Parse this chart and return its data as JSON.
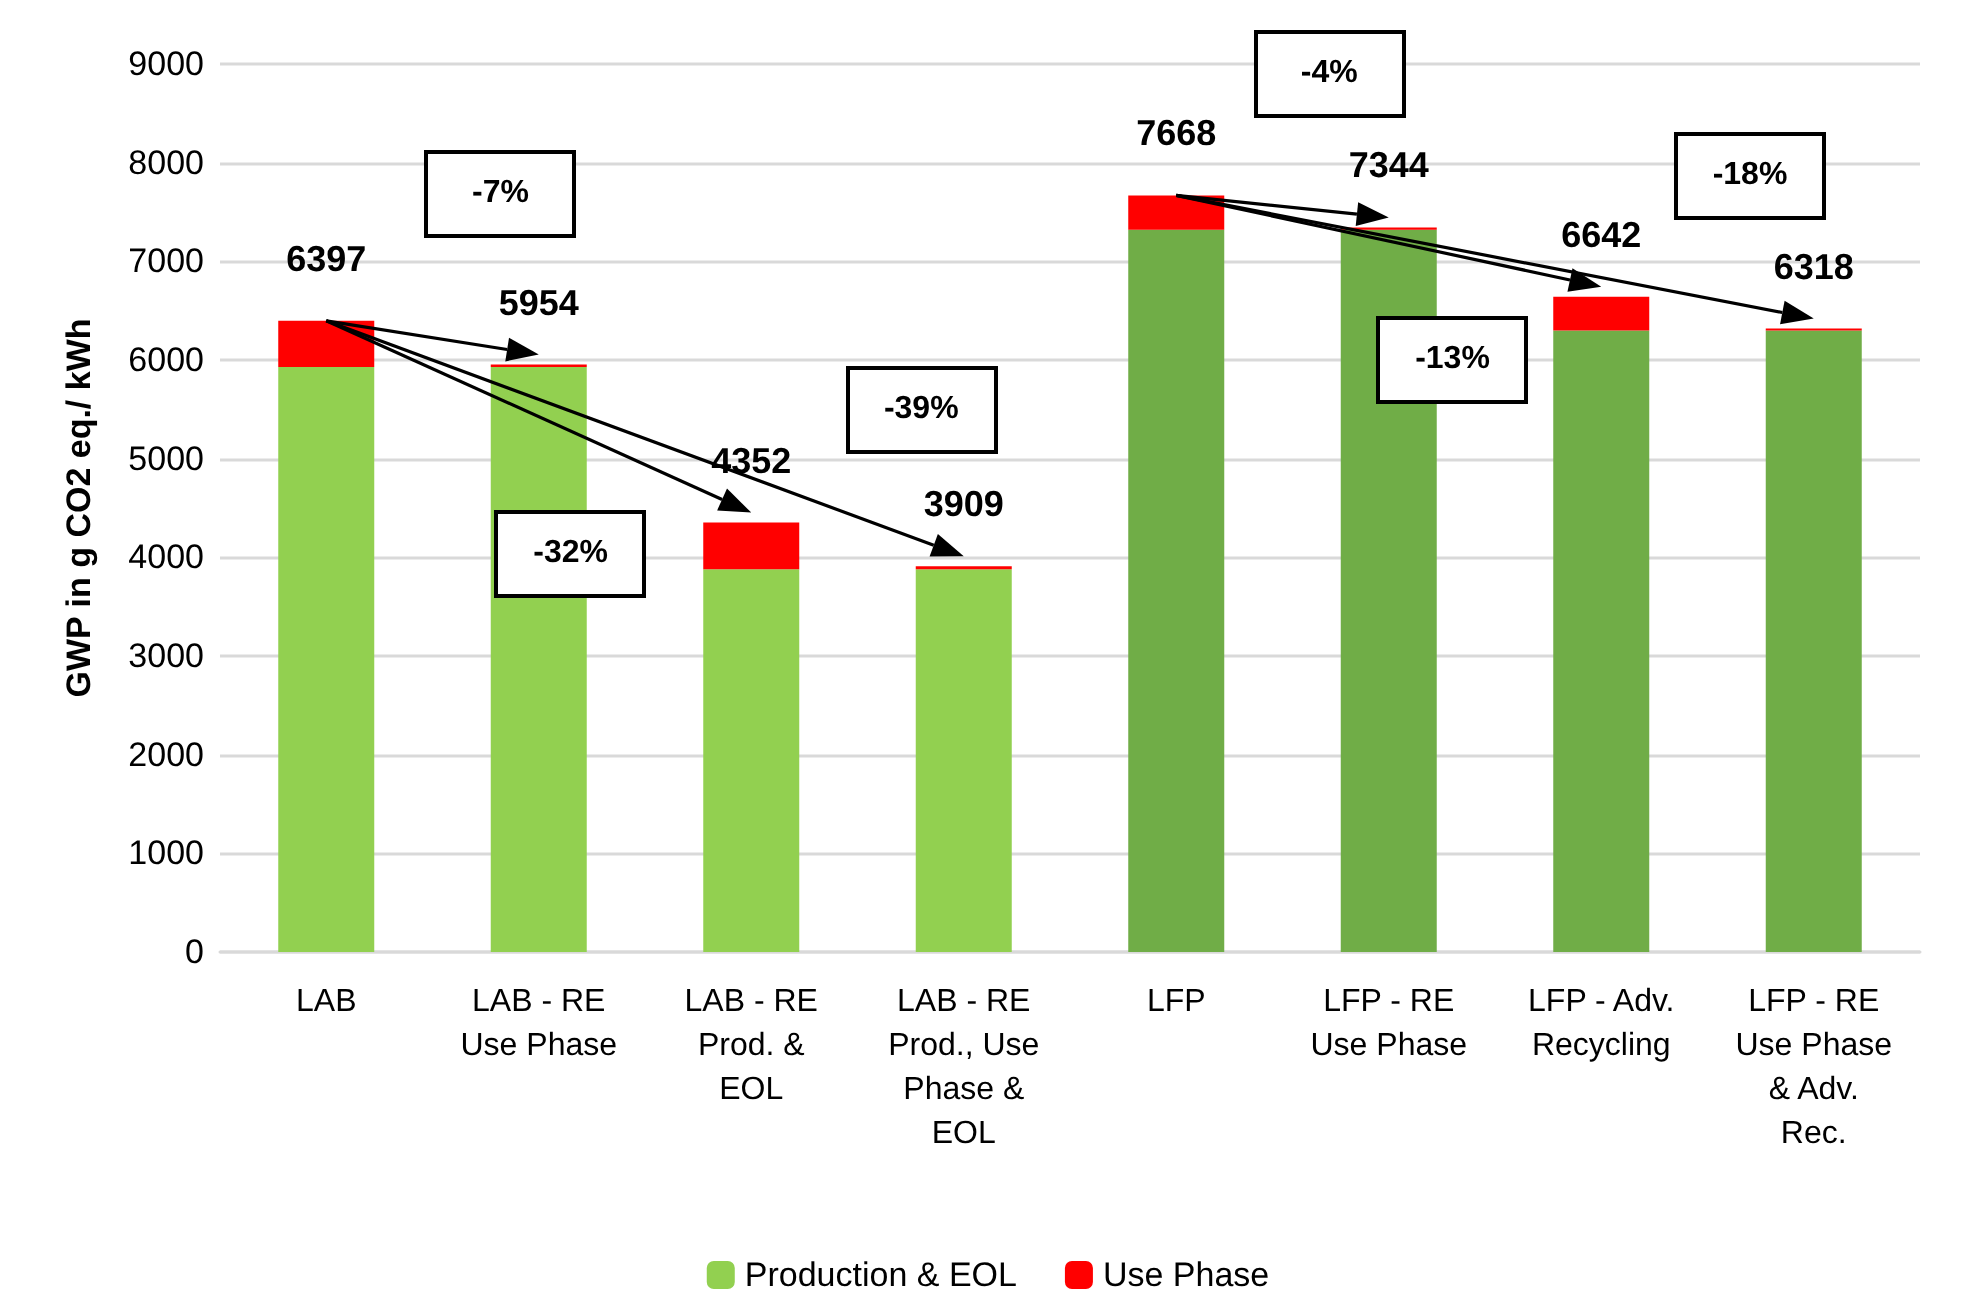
{
  "chart_data": {
    "type": "bar",
    "stacked": true,
    "ylabel": "GWP in g CO2 eq./ kWh",
    "categories": [
      "LAB",
      "LAB - RE\nUse Phase",
      "LAB - RE\nProd. &\nEOL",
      "LAB - RE\nProd., Use\nPhase &\nEOL",
      "LFP",
      "LFP - RE\nUse Phase",
      "LFP - Adv.\nRecycling",
      "LFP - RE\nUse Phase\n& Adv.\nRec."
    ],
    "series": [
      {
        "name": "Production & EOL",
        "color": "#92d050",
        "colors": [
          "#92d050",
          "#92d050",
          "#92d050",
          "#92d050",
          "#70ad47",
          "#70ad47",
          "#70ad47",
          "#70ad47"
        ],
        "values": [
          5930,
          5930,
          3880,
          3880,
          7320,
          7320,
          6300,
          6300
        ]
      },
      {
        "name": "Use Phase",
        "color": "#ff0000",
        "values": [
          467,
          24,
          472,
          29,
          348,
          24,
          342,
          18
        ]
      }
    ],
    "totals": [
      "6397",
      "5954",
      "4352",
      "3909",
      "7668",
      "7344",
      "6642",
      "6318"
    ],
    "ylim": [
      0,
      9000
    ],
    "yticks": [
      0,
      1000,
      2000,
      3000,
      4000,
      5000,
      6000,
      7000,
      8000,
      9000
    ],
    "grid": "y",
    "legend": "bottom",
    "annotations": [
      "-7%",
      "-32%",
      "-39%",
      "-4%",
      "-13%",
      "-18%"
    ]
  }
}
